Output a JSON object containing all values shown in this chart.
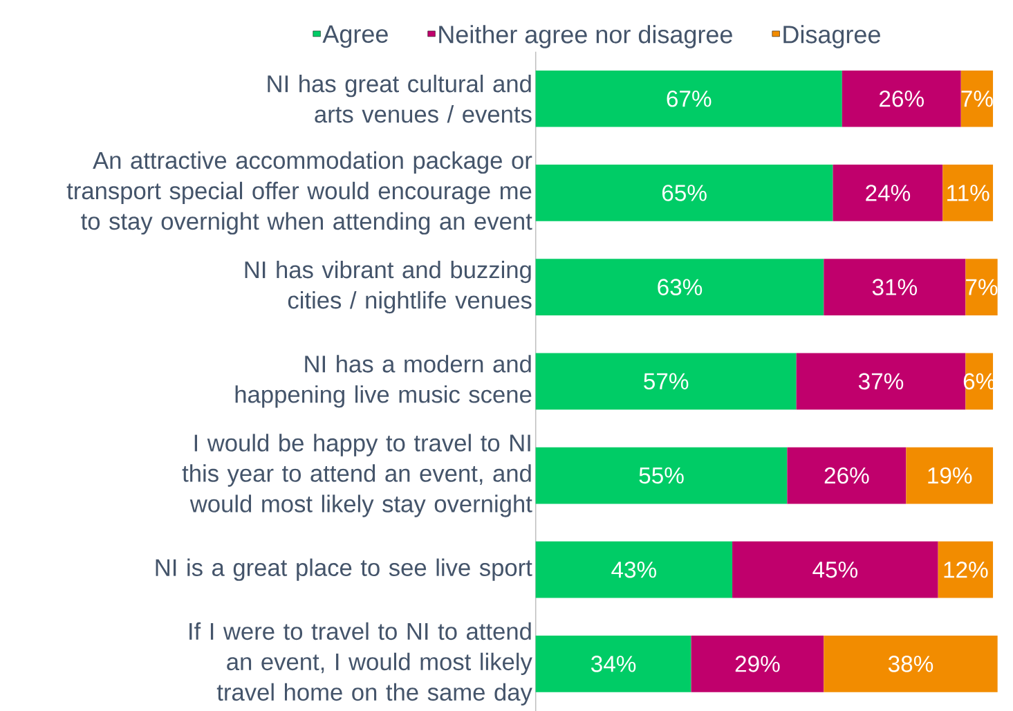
{
  "chart_data": {
    "type": "bar",
    "orientation": "horizontal",
    "stacked": true,
    "relative": false,
    "categories": [
      "NI has great cultural and arts venues / events",
      "An attractive accommodation package or transport special offer would encourage me to stay overnight when attending an event",
      "NI has vibrant and buzzing cities / nightlife venues",
      "NI has a modern and happening live music scene",
      "I would be happy to travel to NI this year to attend an event, and would most likely stay overnight",
      "NI is a great place to see live sport",
      "If I were to travel to NI to attend an event, I would most likely travel home on the same day"
    ],
    "series": [
      {
        "name": "Agree",
        "color": "#00cc66",
        "values": [
          67,
          65,
          63,
          57,
          55,
          43,
          34
        ],
        "value_labels": [
          "67%",
          "65%",
          "63%",
          "57%",
          "55%",
          "43%",
          "34%"
        ]
      },
      {
        "name": "Neither agree nor disagree",
        "color": "#c0006c",
        "values": [
          26,
          24,
          31,
          37,
          26,
          45,
          29
        ],
        "value_labels": [
          "26%",
          "24%",
          "31%",
          "37%",
          "26%",
          "45%",
          "29%"
        ]
      },
      {
        "name": "Disagree",
        "color": "#f28c00",
        "values": [
          7,
          11,
          7,
          6,
          19,
          12,
          38
        ],
        "value_labels": [
          "7%",
          "11%",
          "7%",
          "6%",
          "19%",
          "12%",
          "38%"
        ]
      }
    ],
    "xlim": [
      0,
      101
    ],
    "tick_labels": "y",
    "legend": "top"
  }
}
